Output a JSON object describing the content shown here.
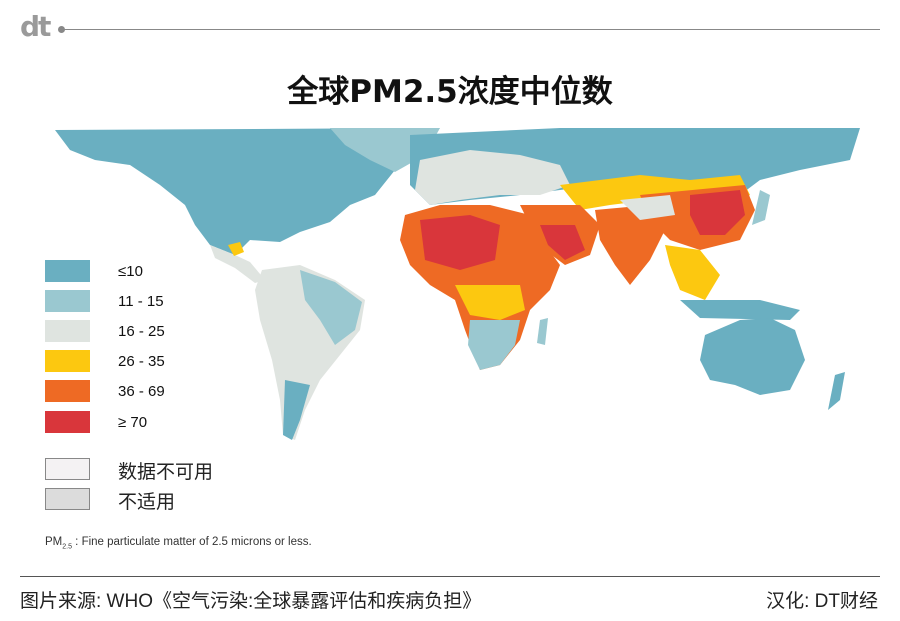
{
  "header": {
    "logo": "dt",
    "title": "全球PM2.5浓度中位数"
  },
  "legend": {
    "items": [
      {
        "label": "≤10",
        "color": "#6aafc1"
      },
      {
        "label": "11 - 15",
        "color": "#9ac8d0"
      },
      {
        "label": "16 - 25",
        "color": "#dfe4e0"
      },
      {
        "label": "26 - 35",
        "color": "#fcc810"
      },
      {
        "label": "36 - 69",
        "color": "#ee6a24"
      },
      {
        "label": "≥ 70",
        "color": "#d9363b"
      }
    ],
    "other": [
      {
        "label": "数据不可用",
        "color": "#f4f2f3"
      },
      {
        "label": "不适用",
        "color": "#dcdcdc"
      }
    ]
  },
  "footnote": {
    "term": "PM",
    "sub": "2.5",
    "text": " : Fine particulate matter of 2.5 microns or less."
  },
  "footer": {
    "source": "图片来源: WHO《空气污染:全球暴露评估和疾病负担》",
    "credit": "汉化: DT财经"
  }
}
